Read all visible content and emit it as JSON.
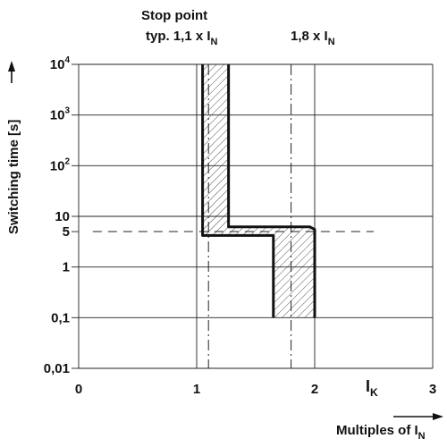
{
  "chart_data": {
    "type": "area",
    "xlabel": "Multiples of I",
    "xlabel_sub": "N",
    "ylabel": "Switching time [s]",
    "x_axis": {
      "range": [
        0,
        3
      ],
      "ticks": [
        {
          "value": 0,
          "label": "0"
        },
        {
          "value": 1,
          "label": "1"
        },
        {
          "value": 2,
          "label": "2"
        },
        {
          "value": 3,
          "label": "3"
        }
      ],
      "grid": true
    },
    "y_axis": {
      "scale": "log",
      "range": [
        0.01,
        10000
      ],
      "ticks": [
        {
          "value": 0.01,
          "label": "0,01"
        },
        {
          "value": 0.1,
          "label": "0,1"
        },
        {
          "value": 1,
          "label": "1"
        },
        {
          "value": 5,
          "label": "5"
        },
        {
          "value": 10,
          "label": "10"
        },
        {
          "value": 100,
          "label": "10",
          "sup": "2"
        },
        {
          "value": 1000,
          "label": "10",
          "sup": "3"
        },
        {
          "value": 10000,
          "label": "10",
          "sup": "4"
        }
      ],
      "grid_values": [
        0.01,
        0.1,
        1,
        10,
        100,
        1000,
        10000
      ],
      "grid": true
    },
    "tripping_band": {
      "lower_boundary": [
        [
          1.05,
          10000
        ],
        [
          1.05,
          4.2
        ],
        [
          1.65,
          4.2
        ],
        [
          1.65,
          0.1
        ]
      ],
      "upper_boundary": [
        [
          1.27,
          10000
        ],
        [
          1.27,
          6.2
        ],
        [
          1.96,
          6.2
        ],
        [
          2.0,
          5.5
        ],
        [
          2.0,
          0.1
        ]
      ],
      "fill": "hatched"
    },
    "reference_lines": [
      {
        "axis": "x",
        "value": 1.1,
        "style": "dash-dot"
      },
      {
        "axis": "x",
        "value": 1.8,
        "style": "dash-dot"
      },
      {
        "axis": "y",
        "value": 5,
        "style": "dashed",
        "x_range": [
          0.12,
          2.5
        ]
      }
    ],
    "annotations": {
      "stop_point_line1": "Stop point",
      "stop_point_line2": "typ. 1,1 x I",
      "stop_point_sub": "N",
      "limit_label": "1,8 x I",
      "limit_sub": "N",
      "ik_label": "I",
      "ik_sub": "K"
    }
  }
}
